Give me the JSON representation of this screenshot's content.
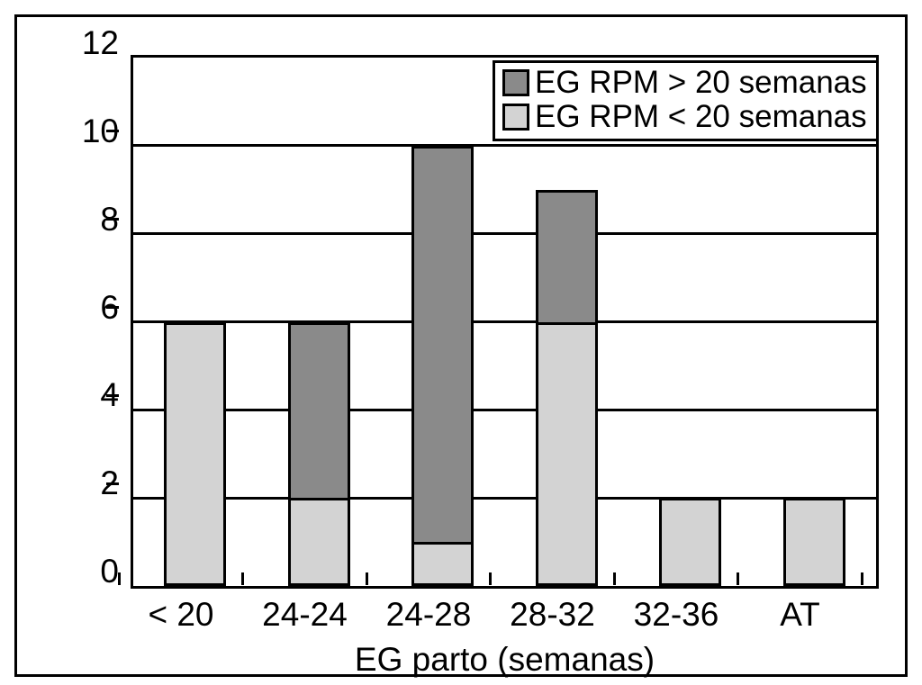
{
  "figure": {
    "background": "#ffffff",
    "frame_color": "#000000",
    "text_color": "#000000"
  },
  "chart_data": {
    "type": "bar",
    "stacked": true,
    "title": "",
    "xlabel": "EG parto (semanas)",
    "ylabel": "",
    "categories": [
      "< 20",
      "24-24",
      "24-28",
      "28-32",
      "32-36",
      "AT"
    ],
    "series": [
      {
        "name": "EG RPM < 20 semanas",
        "color": "#d3d3d3",
        "values": [
          6,
          2,
          1,
          6,
          2,
          2
        ]
      },
      {
        "name": "EG RPM > 20 semanas",
        "color": "#8a8a8a",
        "values": [
          0,
          4,
          9,
          3,
          0,
          0
        ]
      }
    ],
    "totals": [
      6,
      6,
      10,
      9,
      2,
      2
    ],
    "ylim": [
      0,
      12
    ],
    "yticks": [
      0,
      2,
      4,
      6,
      8,
      10,
      12
    ],
    "grid": true,
    "gridline_values": [
      2,
      4,
      6,
      8,
      10
    ],
    "legend": {
      "position": "top-right",
      "entries": [
        {
          "label": "EG RPM > 20 semanas",
          "color": "#8a8a8a"
        },
        {
          "label": "EG RPM < 20 semanas",
          "color": "#d3d3d3"
        }
      ]
    }
  }
}
